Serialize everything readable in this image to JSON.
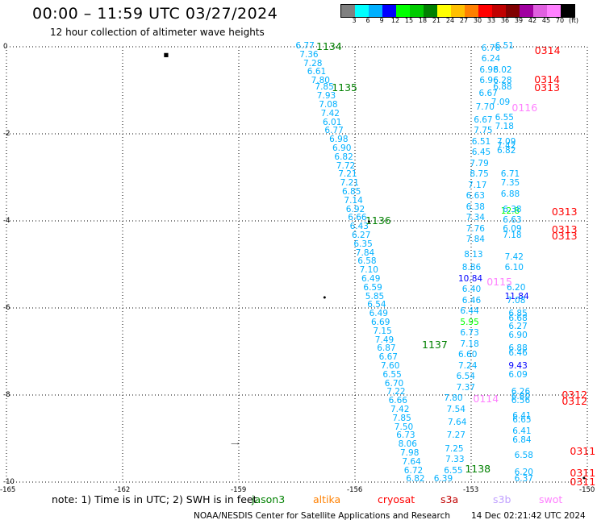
{
  "header": {
    "title": "00:00 – 11:59 UTC 03/27/2024",
    "subtitle": "12 hour collection of altimeter wave heights"
  },
  "colorbar": {
    "swatches": [
      "#808080",
      "#00ffff",
      "#00b0ff",
      "#0000ff",
      "#00ff00",
      "#00cc00",
      "#008000",
      "#ffff00",
      "#ffc000",
      "#ff8000",
      "#ff0000",
      "#c00000",
      "#800000",
      "#a000a0",
      "#e060e0",
      "#ff80ff",
      "#000000"
    ],
    "labels": [
      "3",
      "6",
      "9",
      "12",
      "15",
      "18",
      "21",
      "24",
      "27",
      "30",
      "33",
      "36",
      "39",
      "42",
      "45",
      "70",
      "(ft)"
    ]
  },
  "axes": {
    "y_ticks": [
      "0",
      "-2",
      "-4",
      "-6",
      "-8",
      "-10"
    ],
    "x_ticks": [
      "-165",
      "-162",
      "-159",
      "-156",
      "-153",
      "-150"
    ]
  },
  "chart_data": {
    "type": "scatter",
    "xlim": [
      -165,
      -150
    ],
    "ylim": [
      -10,
      0
    ],
    "grid": true,
    "pass_labels": [
      {
        "text": "1134",
        "lon": -157.0,
        "lat": 0.0,
        "color": "#008000"
      },
      {
        "text": "1135",
        "lon": -156.6,
        "lat": -0.95,
        "color": "#008000"
      },
      {
        "text": "1136",
        "lon": -155.73,
        "lat": -4.0,
        "color": "#008000"
      },
      {
        "text": "1137",
        "lon": -154.27,
        "lat": -6.85,
        "color": "#008000"
      },
      {
        "text": "1138",
        "lon": -153.16,
        "lat": -9.7,
        "color": "#008000"
      },
      {
        "text": "0314",
        "lon": -151.36,
        "lat": -0.1,
        "color": "#ff0000"
      },
      {
        "text": "0314",
        "lon": -151.37,
        "lat": -0.75,
        "color": "#ff0000"
      },
      {
        "text": "0313",
        "lon": -151.37,
        "lat": -0.95,
        "color": "#ff0000"
      },
      {
        "text": "0116",
        "lon": -151.95,
        "lat": -1.4,
        "color": "#ff80ff"
      },
      {
        "text": "0313",
        "lon": -150.92,
        "lat": -3.8,
        "color": "#ff0000"
      },
      {
        "text": "0313",
        "lon": -150.92,
        "lat": -4.2,
        "color": "#ff0000"
      },
      {
        "text": "0313",
        "lon": -150.92,
        "lat": -4.35,
        "color": "#ff0000"
      },
      {
        "text": "0115",
        "lon": -152.6,
        "lat": -5.4,
        "color": "#ff80ff"
      },
      {
        "text": "0114",
        "lon": -152.95,
        "lat": -8.1,
        "color": "#ff80ff"
      },
      {
        "text": "0312",
        "lon": -150.66,
        "lat": -8.0,
        "color": "#ff0000"
      },
      {
        "text": "0312",
        "lon": -150.66,
        "lat": -8.15,
        "color": "#ff0000"
      },
      {
        "text": "0311",
        "lon": -150.45,
        "lat": -9.3,
        "color": "#ff0000"
      },
      {
        "text": "0311",
        "lon": -150.45,
        "lat": -9.8,
        "color": "#ff0000"
      },
      {
        "text": "0311",
        "lon": -150.45,
        "lat": -10.0,
        "color": "#ff0000"
      }
    ],
    "observations": [
      {
        "v": "6.77",
        "lon": -157.45,
        "lat": 0.0,
        "c": "#00b0ff"
      },
      {
        "v": "7.36",
        "lon": -157.35,
        "lat": -0.2,
        "c": "#00b0ff"
      },
      {
        "v": "7.28",
        "lon": -157.25,
        "lat": -0.4,
        "c": "#00b0ff"
      },
      {
        "v": "6.61",
        "lon": -157.15,
        "lat": -0.6,
        "c": "#00b0ff"
      },
      {
        "v": "7.80",
        "lon": -157.05,
        "lat": -0.8,
        "c": "#00b0ff"
      },
      {
        "v": "7.85",
        "lon": -156.95,
        "lat": -0.95,
        "c": "#00b0ff"
      },
      {
        "v": "7.93",
        "lon": -156.9,
        "lat": -1.15,
        "c": "#00b0ff"
      },
      {
        "v": "7.08",
        "lon": -156.85,
        "lat": -1.35,
        "c": "#00b0ff"
      },
      {
        "v": "7.42",
        "lon": -156.8,
        "lat": -1.55,
        "c": "#00b0ff"
      },
      {
        "v": "6.01",
        "lon": -156.75,
        "lat": -1.75,
        "c": "#00b0ff"
      },
      {
        "v": "6.77",
        "lon": -156.7,
        "lat": -1.95,
        "c": "#00b0ff"
      },
      {
        "v": "6.98",
        "lon": -156.58,
        "lat": -2.15,
        "c": "#00b0ff"
      },
      {
        "v": "6.90",
        "lon": -156.5,
        "lat": -2.35,
        "c": "#00b0ff"
      },
      {
        "v": "6.82",
        "lon": -156.45,
        "lat": -2.55,
        "c": "#00b0ff"
      },
      {
        "v": "7.72",
        "lon": -156.4,
        "lat": -2.75,
        "c": "#00b0ff"
      },
      {
        "v": "7.21",
        "lon": -156.35,
        "lat": -2.95,
        "c": "#00b0ff"
      },
      {
        "v": "7.21",
        "lon": -156.3,
        "lat": -3.15,
        "c": "#00b0ff"
      },
      {
        "v": "6.85",
        "lon": -156.25,
        "lat": -3.35,
        "c": "#00b0ff"
      },
      {
        "v": "7.14",
        "lon": -156.2,
        "lat": -3.55,
        "c": "#00b0ff"
      },
      {
        "v": "6.92",
        "lon": -156.15,
        "lat": -3.75,
        "c": "#00b0ff"
      },
      {
        "v": "6.66",
        "lon": -156.1,
        "lat": -3.95,
        "c": "#00b0ff"
      },
      {
        "v": "6.43",
        "lon": -156.05,
        "lat": -4.15,
        "c": "#00b0ff"
      },
      {
        "v": "6.27",
        "lon": -156.0,
        "lat": -4.35,
        "c": "#00b0ff"
      },
      {
        "v": "6.35",
        "lon": -155.95,
        "lat": -4.55,
        "c": "#00b0ff"
      },
      {
        "v": "7.84",
        "lon": -155.9,
        "lat": -4.75,
        "c": "#00b0ff"
      },
      {
        "v": "6.58",
        "lon": -155.85,
        "lat": -4.95,
        "c": "#00b0ff"
      },
      {
        "v": "7.10",
        "lon": -155.8,
        "lat": -5.15,
        "c": "#00b0ff"
      },
      {
        "v": "6.49",
        "lon": -155.75,
        "lat": -5.35,
        "c": "#00b0ff"
      },
      {
        "v": "6.59",
        "lon": -155.7,
        "lat": -5.55,
        "c": "#00b0ff"
      },
      {
        "v": "5.85",
        "lon": -155.65,
        "lat": -5.75,
        "c": "#00b0ff"
      },
      {
        "v": "6.54",
        "lon": -155.6,
        "lat": -5.95,
        "c": "#00b0ff"
      },
      {
        "v": "6.49",
        "lon": -155.55,
        "lat": -6.15,
        "c": "#00b0ff"
      },
      {
        "v": "6.69",
        "lon": -155.5,
        "lat": -6.35,
        "c": "#00b0ff"
      },
      {
        "v": "7.15",
        "lon": -155.45,
        "lat": -6.55,
        "c": "#00b0ff"
      },
      {
        "v": "7.49",
        "lon": -155.4,
        "lat": -6.75,
        "c": "#00b0ff"
      },
      {
        "v": "6.87",
        "lon": -155.35,
        "lat": -6.95,
        "c": "#00b0ff"
      },
      {
        "v": "6.67",
        "lon": -155.3,
        "lat": -7.15,
        "c": "#00b0ff"
      },
      {
        "v": "7.60",
        "lon": -155.25,
        "lat": -7.35,
        "c": "#00b0ff"
      },
      {
        "v": "6.55",
        "lon": -155.2,
        "lat": -7.55,
        "c": "#00b0ff"
      },
      {
        "v": "6.70",
        "lon": -155.15,
        "lat": -7.75,
        "c": "#00b0ff"
      },
      {
        "v": "7.22",
        "lon": -155.1,
        "lat": -7.95,
        "c": "#00b0ff"
      },
      {
        "v": "6.66",
        "lon": -155.05,
        "lat": -8.15,
        "c": "#00b0ff"
      },
      {
        "v": "7.42",
        "lon": -155.0,
        "lat": -8.35,
        "c": "#00b0ff"
      },
      {
        "v": "7.85",
        "lon": -154.95,
        "lat": -8.55,
        "c": "#00b0ff"
      },
      {
        "v": "7.50",
        "lon": -154.9,
        "lat": -8.75,
        "c": "#00b0ff"
      },
      {
        "v": "6.73",
        "lon": -154.85,
        "lat": -8.95,
        "c": "#00b0ff"
      },
      {
        "v": "8.06",
        "lon": -154.8,
        "lat": -9.15,
        "c": "#00b0ff"
      },
      {
        "v": "7.98",
        "lon": -154.75,
        "lat": -9.35,
        "c": "#00b0ff"
      },
      {
        "v": "7.64",
        "lon": -154.7,
        "lat": -9.55,
        "c": "#00b0ff"
      },
      {
        "v": "6.72",
        "lon": -154.65,
        "lat": -9.75,
        "c": "#00b0ff"
      },
      {
        "v": "6.82",
        "lon": -154.6,
        "lat": -9.95,
        "c": "#00b0ff"
      },
      {
        "v": "7.80",
        "lon": -153.62,
        "lat": -8.1,
        "c": "#00b0ff"
      },
      {
        "v": "7.54",
        "lon": -153.55,
        "lat": -8.35,
        "c": "#00b0ff"
      },
      {
        "v": "7.64",
        "lon": -153.52,
        "lat": -8.65,
        "c": "#00b0ff"
      },
      {
        "v": "7.27",
        "lon": -153.55,
        "lat": -8.95,
        "c": "#00b0ff"
      },
      {
        "v": "7.25",
        "lon": -153.6,
        "lat": -9.25,
        "c": "#00b0ff"
      },
      {
        "v": "7.33",
        "lon": -153.58,
        "lat": -9.5,
        "c": "#00b0ff"
      },
      {
        "v": "6.55",
        "lon": -153.62,
        "lat": -9.75,
        "c": "#00b0ff"
      },
      {
        "v": "6.39",
        "lon": -153.88,
        "lat": -9.95,
        "c": "#00b0ff"
      },
      {
        "v": "6.51",
        "lon": -152.3,
        "lat": 0.0,
        "c": "#00b0ff"
      },
      {
        "v": "6.76",
        "lon": -152.65,
        "lat": -0.05,
        "c": "#00b0ff"
      },
      {
        "v": "6.24",
        "lon": -152.65,
        "lat": -0.3,
        "c": "#00b0ff"
      },
      {
        "v": "6.98",
        "lon": -152.7,
        "lat": -0.55,
        "c": "#00b0ff"
      },
      {
        "v": "6.02",
        "lon": -152.35,
        "lat": -0.55,
        "c": "#00b0ff"
      },
      {
        "v": "6.96",
        "lon": -152.7,
        "lat": -0.8,
        "c": "#00b0ff"
      },
      {
        "v": "6.28",
        "lon": -152.35,
        "lat": -0.8,
        "c": "#00b0ff"
      },
      {
        "v": "6.88",
        "lon": -152.35,
        "lat": -0.95,
        "c": "#00b0ff"
      },
      {
        "v": "6.67",
        "lon": -152.72,
        "lat": -1.1,
        "c": "#00b0ff"
      },
      {
        "v": "7.09",
        "lon": -152.4,
        "lat": -1.3,
        "c": "#00b0ff"
      },
      {
        "v": "7.70",
        "lon": -152.8,
        "lat": -1.4,
        "c": "#00b0ff"
      },
      {
        "v": "6.55",
        "lon": -152.3,
        "lat": -1.65,
        "c": "#00b0ff"
      },
      {
        "v": "6.67",
        "lon": -152.85,
        "lat": -1.7,
        "c": "#00b0ff"
      },
      {
        "v": "7.18",
        "lon": -152.3,
        "lat": -1.85,
        "c": "#00b0ff"
      },
      {
        "v": "7.75",
        "lon": -152.85,
        "lat": -1.95,
        "c": "#00b0ff"
      },
      {
        "v": "6.51",
        "lon": -152.9,
        "lat": -2.2,
        "c": "#00b0ff"
      },
      {
        "v": "7.09",
        "lon": -152.25,
        "lat": -2.2,
        "c": "#00b0ff"
      },
      {
        "v": "7.42",
        "lon": -152.25,
        "lat": -2.3,
        "c": "#00b0ff"
      },
      {
        "v": "6.45",
        "lon": -152.9,
        "lat": -2.45,
        "c": "#00b0ff"
      },
      {
        "v": "6.82",
        "lon": -152.25,
        "lat": -2.4,
        "c": "#00b0ff"
      },
      {
        "v": "7.79",
        "lon": -152.95,
        "lat": -2.7,
        "c": "#00b0ff"
      },
      {
        "v": "8.75",
        "lon": -152.95,
        "lat": -2.95,
        "c": "#00b0ff"
      },
      {
        "v": "6.71",
        "lon": -152.15,
        "lat": -2.95,
        "c": "#00b0ff"
      },
      {
        "v": "7.17",
        "lon": -153.0,
        "lat": -3.2,
        "c": "#00b0ff"
      },
      {
        "v": "7.35",
        "lon": -152.15,
        "lat": -3.15,
        "c": "#00b0ff"
      },
      {
        "v": "6.63",
        "lon": -153.05,
        "lat": -3.45,
        "c": "#00b0ff"
      },
      {
        "v": "6.88",
        "lon": -152.15,
        "lat": -3.4,
        "c": "#00b0ff"
      },
      {
        "v": "6.38",
        "lon": -153.05,
        "lat": -3.7,
        "c": "#00b0ff"
      },
      {
        "v": "12.8",
        "lon": -152.15,
        "lat": -3.8,
        "c": "#00ff00"
      },
      {
        "v": "6.38",
        "lon": -152.1,
        "lat": -3.75,
        "c": "#00b0ff"
      },
      {
        "v": "7.34",
        "lon": -153.05,
        "lat": -3.95,
        "c": "#00b0ff"
      },
      {
        "v": "6.63",
        "lon": -152.1,
        "lat": -4.0,
        "c": "#00b0ff"
      },
      {
        "v": "7.76",
        "lon": -153.05,
        "lat": -4.2,
        "c": "#00b0ff"
      },
      {
        "v": "6.09",
        "lon": -152.1,
        "lat": -4.2,
        "c": "#00b0ff"
      },
      {
        "v": "7.18",
        "lon": -152.1,
        "lat": -4.35,
        "c": "#00b0ff"
      },
      {
        "v": "7.84",
        "lon": -153.05,
        "lat": -4.45,
        "c": "#00b0ff"
      },
      {
        "v": "8.13",
        "lon": -153.1,
        "lat": -4.8,
        "c": "#00b0ff"
      },
      {
        "v": "7.42",
        "lon": -152.05,
        "lat": -4.85,
        "c": "#00b0ff"
      },
      {
        "v": "8.86",
        "lon": -153.15,
        "lat": -5.1,
        "c": "#00b0ff"
      },
      {
        "v": "6.10",
        "lon": -152.05,
        "lat": -5.1,
        "c": "#00b0ff"
      },
      {
        "v": "10.84",
        "lon": -153.25,
        "lat": -5.35,
        "c": "#0000ff"
      },
      {
        "v": "6.40",
        "lon": -153.15,
        "lat": -5.6,
        "c": "#00b0ff"
      },
      {
        "v": "6.20",
        "lon": -152.0,
        "lat": -5.55,
        "c": "#00b0ff"
      },
      {
        "v": "11.84",
        "lon": -152.05,
        "lat": -5.75,
        "c": "#0000ff"
      },
      {
        "v": "6.46",
        "lon": -153.15,
        "lat": -5.85,
        "c": "#00b0ff"
      },
      {
        "v": "7.08",
        "lon": -152.0,
        "lat": -5.85,
        "c": "#00b0ff"
      },
      {
        "v": "6.44",
        "lon": -153.2,
        "lat": -6.1,
        "c": "#00b0ff"
      },
      {
        "v": "6.85",
        "lon": -151.95,
        "lat": -6.15,
        "c": "#00b0ff"
      },
      {
        "v": "6.68",
        "lon": -151.95,
        "lat": -6.25,
        "c": "#00b0ff"
      },
      {
        "v": "5.95",
        "lon": -153.2,
        "lat": -6.35,
        "c": "#00ff00"
      },
      {
        "v": "6.27",
        "lon": -151.95,
        "lat": -6.45,
        "c": "#00b0ff"
      },
      {
        "v": "6.73",
        "lon": -153.2,
        "lat": -6.6,
        "c": "#00b0ff"
      },
      {
        "v": "6.90",
        "lon": -151.95,
        "lat": -6.65,
        "c": "#00b0ff"
      },
      {
        "v": "7.18",
        "lon": -153.2,
        "lat": -6.85,
        "c": "#00b0ff"
      },
      {
        "v": "6.88",
        "lon": -151.95,
        "lat": -6.95,
        "c": "#00b0ff"
      },
      {
        "v": "6.46",
        "lon": -151.95,
        "lat": -7.05,
        "c": "#00b0ff"
      },
      {
        "v": "6.60",
        "lon": -153.25,
        "lat": -7.1,
        "c": "#00b0ff"
      },
      {
        "v": "9.43",
        "lon": -151.95,
        "lat": -7.35,
        "c": "#0000ff"
      },
      {
        "v": "7.24",
        "lon": -153.25,
        "lat": -7.35,
        "c": "#00b0ff"
      },
      {
        "v": "6.09",
        "lon": -151.95,
        "lat": -7.55,
        "c": "#00b0ff"
      },
      {
        "v": "6.54",
        "lon": -153.3,
        "lat": -7.6,
        "c": "#00b0ff"
      },
      {
        "v": "7.37",
        "lon": -153.3,
        "lat": -7.85,
        "c": "#00b0ff"
      },
      {
        "v": "6.26",
        "lon": -151.88,
        "lat": -7.95,
        "c": "#00b0ff"
      },
      {
        "v": "6.80",
        "lon": -151.88,
        "lat": -8.05,
        "c": "#00b0ff"
      },
      {
        "v": "6.56",
        "lon": -151.88,
        "lat": -8.15,
        "c": "#00b0ff"
      },
      {
        "v": "6.41",
        "lon": -151.85,
        "lat": -8.5,
        "c": "#00b0ff"
      },
      {
        "v": "6.65",
        "lon": -151.85,
        "lat": -8.6,
        "c": "#00b0ff"
      },
      {
        "v": "6.41",
        "lon": -151.85,
        "lat": -8.85,
        "c": "#00b0ff"
      },
      {
        "v": "6.84",
        "lon": -151.85,
        "lat": -9.05,
        "c": "#00b0ff"
      },
      {
        "v": "6.58",
        "lon": -151.8,
        "lat": -9.4,
        "c": "#00b0ff"
      },
      {
        "v": "6.20",
        "lon": -151.8,
        "lat": -9.8,
        "c": "#00b0ff"
      },
      {
        "v": "6.37",
        "lon": -151.8,
        "lat": -9.95,
        "c": "#00b0ff"
      }
    ],
    "markers": [
      {
        "lon": -160.95,
        "lat": -0.2,
        "text": "▪"
      },
      {
        "lon": -155.7,
        "lat": -4.05,
        "text": "•"
      },
      {
        "lon": -156.85,
        "lat": -5.8,
        "text": "•"
      },
      {
        "lon": -159.1,
        "lat": -9.05,
        "text": "͢"
      },
      {
        "lon": -150.15,
        "lat": -9.95,
        "text": "•"
      }
    ]
  },
  "footer": {
    "note": "note:  1) Time is in UTC;  2) SWH is in feet",
    "legend": [
      {
        "label": "jason3",
        "color": "#008000"
      },
      {
        "label": "altika",
        "color": "#ff8000"
      },
      {
        "label": "cryosat",
        "color": "#ff0000"
      },
      {
        "label": "s3a",
        "color": "#c00000"
      },
      {
        "label": "s3b",
        "color": "#c0a0ff"
      },
      {
        "label": "swot",
        "color": "#ff80ff"
      }
    ],
    "credit": "NOAA/NESDIS Center for Satellite Applications and Research",
    "timestamp": "14 Dec 02:21:42 UTC 2024"
  }
}
